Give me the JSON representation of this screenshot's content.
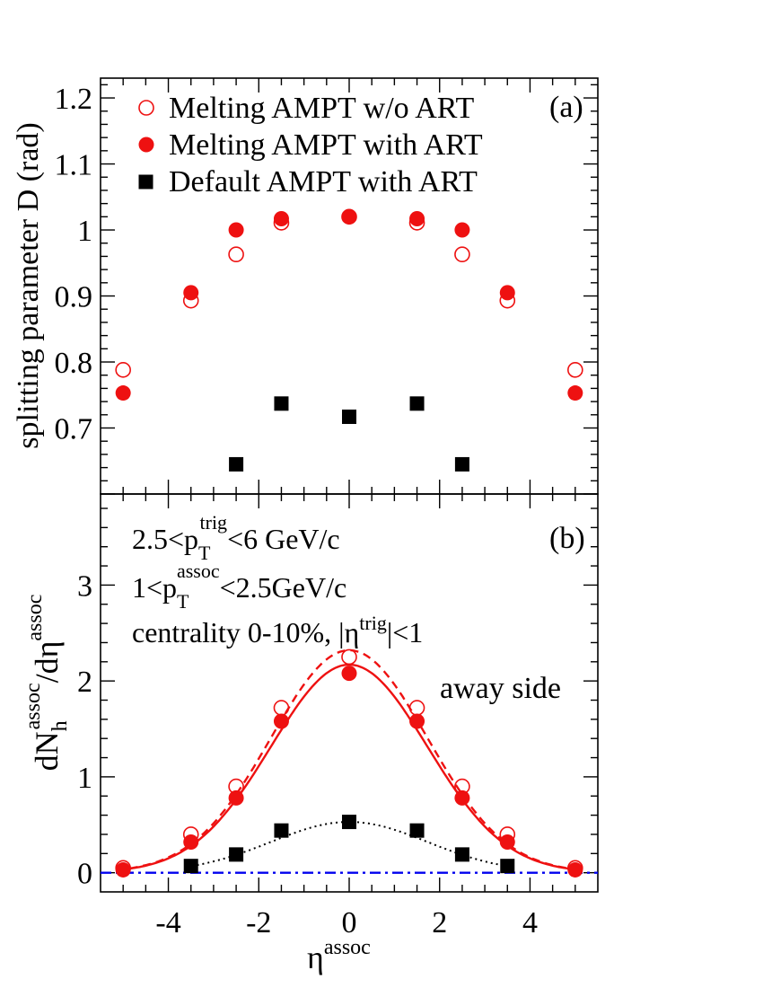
{
  "chart_data": [
    {
      "panel": "(a)",
      "type": "scatter",
      "ylabel": "splitting parameter D (rad)",
      "ylim": [
        0.6,
        1.23
      ],
      "xlim": [
        -5.5,
        5.5
      ],
      "y_ticks": [
        0.7,
        0.8,
        0.9,
        1,
        1.1,
        1.2
      ],
      "y_tick_labels": [
        "0.7",
        "0.8",
        "0.9",
        "1",
        "1.1",
        "1.2"
      ],
      "legend_position": "top-left",
      "series": [
        {
          "name": "Melting AMPT w/o ART",
          "marker": "open-circle",
          "color": "#ee1111",
          "x": [
            -5,
            -3.5,
            -2.5,
            -1.5,
            0,
            1.5,
            2.5,
            3.5,
            5
          ],
          "y": [
            0.788,
            0.893,
            0.963,
            1.011,
            1.02,
            1.011,
            0.963,
            0.893,
            0.788
          ]
        },
        {
          "name": "Melting AMPT with ART",
          "marker": "filled-circle",
          "color": "#ee1111",
          "x": [
            -5,
            -3.5,
            -2.5,
            -1.5,
            0,
            1.5,
            2.5,
            3.5,
            5
          ],
          "y": [
            0.753,
            0.905,
            1.0,
            1.017,
            1.02,
            1.017,
            1.0,
            0.905,
            0.753
          ]
        },
        {
          "name": "Default AMPT with ART",
          "marker": "filled-square",
          "color": "#000000",
          "x": [
            -2.5,
            -1.5,
            0,
            1.5,
            2.5
          ],
          "y": [
            0.645,
            0.737,
            0.717,
            0.737,
            0.645
          ]
        }
      ]
    },
    {
      "panel": "(b)",
      "type": "scatter",
      "xlabel": "η",
      "xlabel_sup": "assoc",
      "ylabel_parts": {
        "main1": "dN",
        "sub1": "h",
        "sup1": "assoc",
        "main2": "/dη",
        "sup2": "assoc"
      },
      "xlim": [
        -5.5,
        5.5
      ],
      "ylim": [
        -0.2,
        3.95
      ],
      "x_ticks": [
        -4,
        -2,
        0,
        2,
        4
      ],
      "x_tick_labels": [
        "-4",
        "-2",
        "0",
        "2",
        "4"
      ],
      "y_ticks": [
        0,
        1,
        2,
        3
      ],
      "y_tick_labels": [
        "0",
        "1",
        "2",
        "3"
      ],
      "annotations": {
        "line1": {
          "a": "2.5<p",
          "sub": "T",
          "sup": "trig",
          "b": "<6 GeV/c"
        },
        "line2": {
          "a": "1<p",
          "sub": "T",
          "sup": "assoc",
          "b": "<2.5GeV/c"
        },
        "line3": {
          "a": "centrality 0-10%, |η",
          "sup": "trig",
          "b": "|<1"
        },
        "away_side": "away side"
      },
      "series": [
        {
          "name": "Melting AMPT w/o ART",
          "marker": "open-circle",
          "color": "#ee1111",
          "x": [
            -5,
            -3.5,
            -2.5,
            -1.5,
            0,
            1.5,
            2.5,
            3.5,
            5
          ],
          "y": [
            0.05,
            0.4,
            0.9,
            1.72,
            2.25,
            1.72,
            0.9,
            0.4,
            0.05
          ]
        },
        {
          "name": "Melting AMPT with ART",
          "marker": "filled-circle",
          "color": "#ee1111",
          "x": [
            -5,
            -3.5,
            -2.5,
            -1.5,
            0,
            1.5,
            2.5,
            3.5,
            5
          ],
          "y": [
            0.03,
            0.32,
            0.78,
            1.58,
            2.08,
            1.58,
            0.78,
            0.32,
            0.03
          ]
        },
        {
          "name": "Default AMPT with ART",
          "marker": "filled-square",
          "color": "#000000",
          "x": [
            -3.5,
            -2.5,
            -1.5,
            0,
            1.5,
            2.5,
            3.5
          ],
          "y": [
            0.07,
            0.19,
            0.44,
            0.53,
            0.44,
            0.19,
            0.07
          ]
        }
      ],
      "fits": [
        {
          "style": "dashed",
          "color": "#ee1111",
          "amplitude": 2.32,
          "sigma": 1.73
        },
        {
          "style": "solid",
          "color": "#ee1111",
          "amplitude": 2.17,
          "sigma": 1.73
        },
        {
          "style": "dotted",
          "color": "#000000",
          "amplitude": 0.53,
          "sigma": 1.73
        },
        {
          "style": "dash-dot",
          "color": "#0000ee",
          "amplitude": 0,
          "sigma": 0
        }
      ]
    }
  ]
}
